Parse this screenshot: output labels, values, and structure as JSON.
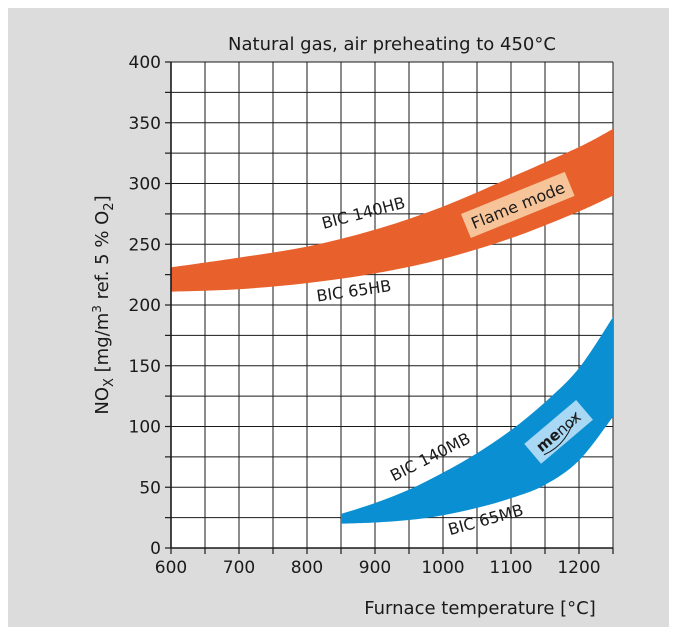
{
  "chart_data": {
    "type": "area",
    "title": "Natural gas, air preheating to 450°C",
    "xlabel": "Furnace temperature [°C]",
    "ylabel": {
      "main": "NO",
      "sub1": "X",
      "mid": "  [mg/m",
      "sup": "3",
      "rest": " ref. 5 % O",
      "sub2": "2",
      "end": "]"
    },
    "xlim": [
      600,
      1250
    ],
    "ylim": [
      0,
      400
    ],
    "x_ticks": [
      600,
      700,
      800,
      900,
      1000,
      1100,
      1200
    ],
    "y_ticks": [
      0,
      50,
      100,
      150,
      200,
      250,
      300,
      350,
      400
    ],
    "grid": true,
    "series": [
      {
        "name": "Flame mode",
        "color": "#e8602c",
        "label_bg": "#f7c49a",
        "upper_label": "BIC 140HB",
        "lower_label": "BIC 65HB",
        "upper": [
          [
            600,
            231
          ],
          [
            700,
            239
          ],
          [
            800,
            248
          ],
          [
            900,
            262
          ],
          [
            1000,
            281
          ],
          [
            1100,
            305
          ],
          [
            1200,
            330
          ],
          [
            1250,
            345
          ]
        ],
        "lower": [
          [
            600,
            211
          ],
          [
            700,
            213
          ],
          [
            800,
            218
          ],
          [
            900,
            226
          ],
          [
            1000,
            238
          ],
          [
            1100,
            255
          ],
          [
            1200,
            277
          ],
          [
            1250,
            290
          ]
        ]
      },
      {
        "name": "menox",
        "name_bold": "me",
        "name_rest": "nox",
        "color": "#0a8fd3",
        "label_bg": "#a8d8f3",
        "upper_label": "BIC 140MB",
        "lower_label": "BIC 65MB",
        "upper": [
          [
            850,
            28
          ],
          [
            900,
            37
          ],
          [
            950,
            48
          ],
          [
            1000,
            62
          ],
          [
            1050,
            78
          ],
          [
            1100,
            97
          ],
          [
            1150,
            120
          ],
          [
            1200,
            148
          ],
          [
            1250,
            190
          ]
        ],
        "lower": [
          [
            850,
            20
          ],
          [
            900,
            21
          ],
          [
            950,
            23
          ],
          [
            1000,
            27
          ],
          [
            1050,
            33
          ],
          [
            1100,
            41
          ],
          [
            1150,
            52
          ],
          [
            1200,
            72
          ],
          [
            1250,
            108
          ]
        ]
      }
    ]
  }
}
